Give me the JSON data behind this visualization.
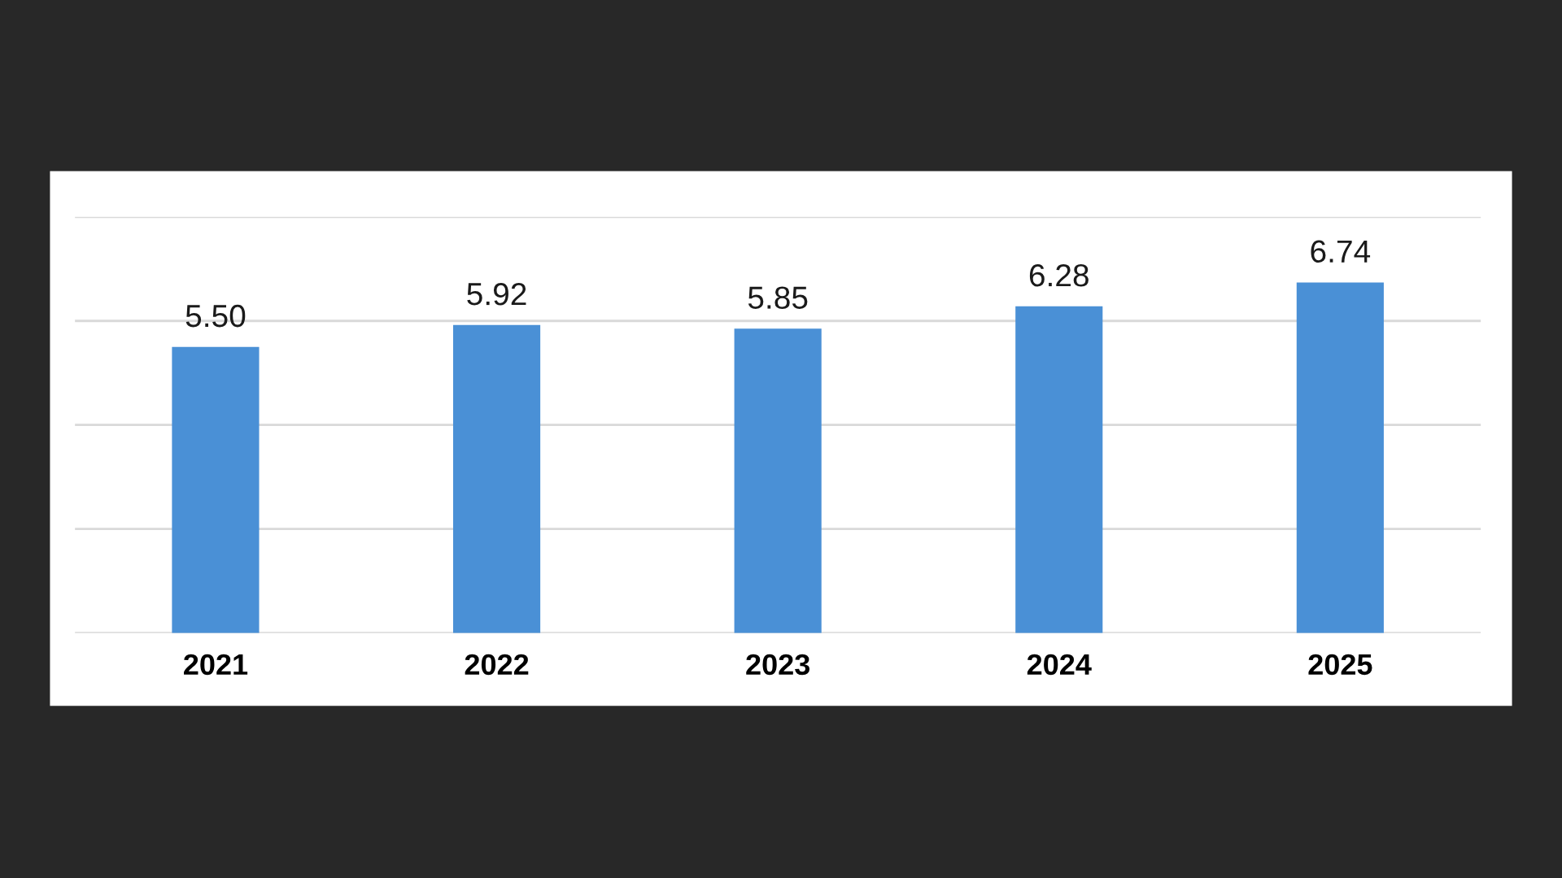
{
  "chart_data": {
    "type": "bar",
    "categories": [
      "2021",
      "2022",
      "2023",
      "2024",
      "2025"
    ],
    "values": [
      5.5,
      5.92,
      5.85,
      6.28,
      6.74
    ],
    "value_labels": [
      "5.50",
      "5.92",
      "5.85",
      "6.28",
      "6.74"
    ],
    "color": "#4a90d6",
    "ylim": [
      0,
      8
    ],
    "yticks": [
      {
        "value": 0,
        "label": null
      },
      {
        "value": 2,
        "label": null
      },
      {
        "value": 4,
        "label": null
      },
      {
        "value": 6,
        "label": null
      },
      {
        "value": 8,
        "label": null
      }
    ],
    "grid": "y",
    "tick_labels": "x"
  }
}
